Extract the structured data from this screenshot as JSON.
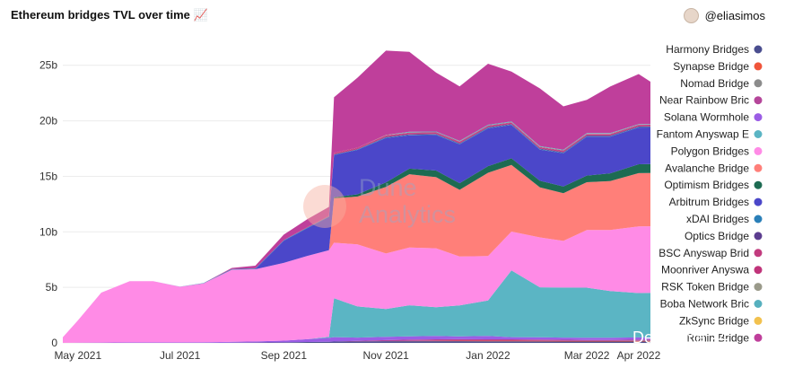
{
  "header": {
    "title": "Ethereum bridges TVL over time 📈",
    "author": "@eliasimos"
  },
  "watermark": {
    "line1": "Dune",
    "line2": "Analytics"
  },
  "corner_mark": "DefiLlama 24",
  "colors": {
    "harmony": "#4a4e8f",
    "synapse": "#f0553a",
    "nomad": "#8c8c8c",
    "near": "#b5469a",
    "solana": "#9b5de5",
    "fantom": "#5bb5c4",
    "polygon": "#ff8be6",
    "avalanche": "#ff7f79",
    "optimism": "#1d6b52",
    "arbitrum": "#4b47c9",
    "xdai": "#2a7fb8",
    "optics": "#5c3d8f",
    "bsc": "#c23b7e",
    "moonriver": "#c0347a",
    "rsk": "#9a9a8a",
    "boba": "#56b0be",
    "zksync": "#f2c14e",
    "ronin": "#bf3f9b"
  },
  "chart_data": {
    "type": "area",
    "stacked": true,
    "title": "Ethereum bridges TVL over time",
    "xlabel": "",
    "ylabel": "",
    "x_ticks": [
      "May 2021",
      "Jul 2021",
      "Sep 2021",
      "Nov 2021",
      "Jan 2022",
      "Mar 2022",
      "Apr 2022"
    ],
    "x_tick_dates": [
      "2021-05-01",
      "2021-07-01",
      "2021-09-01",
      "2021-11-01",
      "2022-01-01",
      "2022-03-01",
      "2022-04-01"
    ],
    "y_ticks": [
      "0",
      "5b",
      "10b",
      "15b",
      "20b",
      "25b"
    ],
    "ylim": [
      0,
      27
    ],
    "y_unit": "billion USD",
    "legend_position": "right",
    "x": [
      "2021-04-22",
      "2021-05-01",
      "2021-05-15",
      "2021-06-01",
      "2021-06-15",
      "2021-07-01",
      "2021-07-15",
      "2021-08-01",
      "2021-08-15",
      "2021-09-01",
      "2021-09-15",
      "2021-09-28",
      "2021-10-01",
      "2021-10-15",
      "2021-11-01",
      "2021-11-15",
      "2021-12-01",
      "2021-12-15",
      "2022-01-01",
      "2022-01-15",
      "2022-02-01",
      "2022-02-15",
      "2022-03-01",
      "2022-03-15",
      "2022-04-01",
      "2022-04-08"
    ],
    "series": [
      {
        "name": "Harmony Bridges",
        "color_key": "harmony",
        "values": [
          0,
          0,
          0,
          0,
          0,
          0,
          0,
          0.02,
          0.03,
          0.05,
          0.08,
          0.1,
          0.12,
          0.13,
          0.15,
          0.15,
          0.15,
          0.15,
          0.14,
          0.14,
          0.13,
          0.12,
          0.12,
          0.12,
          0.12,
          0.12
        ]
      },
      {
        "name": "Synapse Bridge",
        "color_key": "synapse",
        "values": [
          0,
          0,
          0,
          0,
          0,
          0,
          0,
          0,
          0,
          0,
          0,
          0,
          0,
          0,
          0,
          0.02,
          0.04,
          0.05,
          0.06,
          0.06,
          0.06,
          0.06,
          0.05,
          0.05,
          0.05,
          0.05
        ]
      },
      {
        "name": "Nomad Bridge",
        "color_key": "nomad",
        "values": [
          0,
          0,
          0,
          0,
          0,
          0,
          0,
          0,
          0,
          0,
          0,
          0,
          0,
          0,
          0,
          0,
          0,
          0,
          0,
          0,
          0,
          0,
          0,
          0,
          0.02,
          0.03
        ]
      },
      {
        "name": "Near Rainbow Bridge",
        "color_key": "near",
        "values": [
          0,
          0,
          0,
          0,
          0,
          0,
          0,
          0,
          0,
          0,
          0,
          0,
          0,
          0.05,
          0.1,
          0.12,
          0.13,
          0.13,
          0.12,
          0.12,
          0.11,
          0.1,
          0.1,
          0.1,
          0.1,
          0.1
        ]
      },
      {
        "name": "Solana Wormhole",
        "color_key": "solana",
        "values": [
          0,
          0.02,
          0.03,
          0.05,
          0.05,
          0.05,
          0.06,
          0.08,
          0.1,
          0.15,
          0.25,
          0.35,
          0.4,
          0.3,
          0.3,
          0.3,
          0.3,
          0.25,
          0.3,
          0.2,
          0.2,
          0.2,
          0.2,
          0.2,
          0.2,
          0.2
        ]
      },
      {
        "name": "Fantom Anyswap Bridge",
        "color_key": "fantom",
        "values": [
          0,
          0,
          0,
          0,
          0,
          0,
          0,
          0,
          0,
          0,
          0,
          0.1,
          3.5,
          2.8,
          2.5,
          2.8,
          2.6,
          2.8,
          3.2,
          6.0,
          4.5,
          4.5,
          4.5,
          4.2,
          4.0,
          4.0
        ]
      },
      {
        "name": "Polygon Bridges",
        "color_key": "polygon",
        "values": [
          0.5,
          2.0,
          4.5,
          5.5,
          5.5,
          5.0,
          5.3,
          6.5,
          6.5,
          7.0,
          7.5,
          7.8,
          5.0,
          5.6,
          5.0,
          5.2,
          5.3,
          4.4,
          4.0,
          3.5,
          4.5,
          4.2,
          5.2,
          5.5,
          6.0,
          6.0
        ]
      },
      {
        "name": "Avalanche Bridge",
        "color_key": "avalanche",
        "values": [
          0,
          0,
          0,
          0,
          0,
          0,
          0,
          0,
          0,
          0,
          0,
          0,
          4.0,
          4.3,
          6.0,
          6.6,
          6.4,
          6.0,
          7.5,
          6.0,
          4.5,
          4.3,
          4.3,
          4.4,
          4.8,
          4.8
        ]
      },
      {
        "name": "Optimism Bridges",
        "color_key": "optimism",
        "values": [
          0,
          0,
          0,
          0,
          0,
          0,
          0,
          0,
          0,
          0,
          0,
          0,
          0.1,
          0.2,
          0.4,
          0.5,
          0.6,
          0.6,
          0.6,
          0.6,
          0.6,
          0.6,
          0.6,
          0.7,
          0.8,
          0.8
        ]
      },
      {
        "name": "Arbitrum Bridges",
        "color_key": "arbitrum",
        "values": [
          0,
          0,
          0,
          0,
          0,
          0,
          0,
          0,
          0.02,
          2.0,
          2.5,
          3.0,
          3.8,
          4.0,
          4.0,
          3.0,
          3.2,
          3.5,
          3.4,
          3.0,
          2.8,
          3.0,
          3.5,
          3.3,
          3.3,
          3.3
        ]
      },
      {
        "name": "xDAI Bridges",
        "color_key": "xdai",
        "values": [
          0,
          0,
          0,
          0,
          0.01,
          0.01,
          0.02,
          0.05,
          0.05,
          0.05,
          0.05,
          0.05,
          0.05,
          0.05,
          0.05,
          0.05,
          0.05,
          0.05,
          0.05,
          0.05,
          0.05,
          0.05,
          0.05,
          0.05,
          0.05,
          0.05
        ]
      },
      {
        "name": "Optics Bridge",
        "color_key": "optics",
        "values": [
          0,
          0,
          0,
          0,
          0,
          0,
          0,
          0,
          0,
          0,
          0,
          0,
          0,
          0,
          0.05,
          0.05,
          0.05,
          0.05,
          0.05,
          0.05,
          0.05,
          0.05,
          0.05,
          0.05,
          0.05,
          0.05
        ]
      },
      {
        "name": "BSC Anyswap Bridge",
        "color_key": "bsc",
        "values": [
          0,
          0,
          0,
          0,
          0,
          0,
          0,
          0,
          0,
          0,
          0.05,
          0.05,
          0.1,
          0.1,
          0.1,
          0.1,
          0.1,
          0.1,
          0.1,
          0.1,
          0.1,
          0.1,
          0.1,
          0.1,
          0.1,
          0.1
        ]
      },
      {
        "name": "Moonriver Anyswap Bridge",
        "color_key": "moonriver",
        "values": [
          0,
          0,
          0,
          0,
          0,
          0,
          0,
          0,
          0,
          0,
          0,
          0,
          0.05,
          0.05,
          0.05,
          0.05,
          0.05,
          0.05,
          0.05,
          0.05,
          0.05,
          0.05,
          0.05,
          0.05,
          0.05,
          0.05
        ]
      },
      {
        "name": "RSK Token Bridge",
        "color_key": "rsk",
        "values": [
          0,
          0,
          0,
          0,
          0,
          0,
          0,
          0,
          0,
          0,
          0,
          0,
          0,
          0,
          0.02,
          0.02,
          0.02,
          0.02,
          0.02,
          0.02,
          0.02,
          0.02,
          0.02,
          0.02,
          0.02,
          0.02
        ]
      },
      {
        "name": "Boba Network Bridge",
        "color_key": "boba",
        "values": [
          0,
          0,
          0,
          0,
          0,
          0,
          0,
          0,
          0,
          0,
          0,
          0,
          0,
          0,
          0,
          0.05,
          0.05,
          0.05,
          0.05,
          0.05,
          0.05,
          0.05,
          0.05,
          0.05,
          0.05,
          0.05
        ]
      },
      {
        "name": "ZkSync Bridge",
        "color_key": "zksync",
        "values": [
          0,
          0,
          0,
          0,
          0,
          0,
          0,
          0,
          0,
          0,
          0,
          0,
          0,
          0,
          0,
          0,
          0,
          0,
          0,
          0,
          0,
          0,
          0,
          0,
          0,
          0
        ]
      },
      {
        "name": "Ronin Bridge",
        "color_key": "ronin",
        "values": [
          0,
          0,
          0,
          0,
          0,
          0,
          0,
          0.1,
          0.25,
          0.5,
          0.7,
          0.8,
          5.0,
          6.3,
          7.6,
          7.2,
          5.3,
          4.9,
          5.5,
          4.5,
          5.2,
          3.9,
          3.0,
          4.2,
          4.5,
          3.8
        ]
      }
    ]
  },
  "legend": [
    {
      "label": "Harmony Bridges",
      "color_key": "harmony"
    },
    {
      "label": "Synapse Bridge",
      "color_key": "synapse"
    },
    {
      "label": "Nomad Bridge",
      "color_key": "nomad"
    },
    {
      "label": "Near Rainbow Bric",
      "color_key": "near"
    },
    {
      "label": "Solana Wormhole",
      "color_key": "solana"
    },
    {
      "label": "Fantom Anyswap E",
      "color_key": "fantom"
    },
    {
      "label": "Polygon Bridges",
      "color_key": "polygon"
    },
    {
      "label": "Avalanche Bridge",
      "color_key": "avalanche"
    },
    {
      "label": "Optimism Bridges",
      "color_key": "optimism"
    },
    {
      "label": "Arbitrum Bridges",
      "color_key": "arbitrum"
    },
    {
      "label": "xDAI Bridges",
      "color_key": "xdai"
    },
    {
      "label": "Optics Bridge",
      "color_key": "optics"
    },
    {
      "label": "BSC Anyswap Brid",
      "color_key": "bsc"
    },
    {
      "label": "Moonriver Anyswa",
      "color_key": "moonriver"
    },
    {
      "label": "RSK Token Bridge",
      "color_key": "rsk"
    },
    {
      "label": "Boba Network Bric",
      "color_key": "boba"
    },
    {
      "label": "ZkSync Bridge",
      "color_key": "zksync"
    },
    {
      "label": "Ronin Bridge",
      "color_key": "ronin"
    }
  ]
}
